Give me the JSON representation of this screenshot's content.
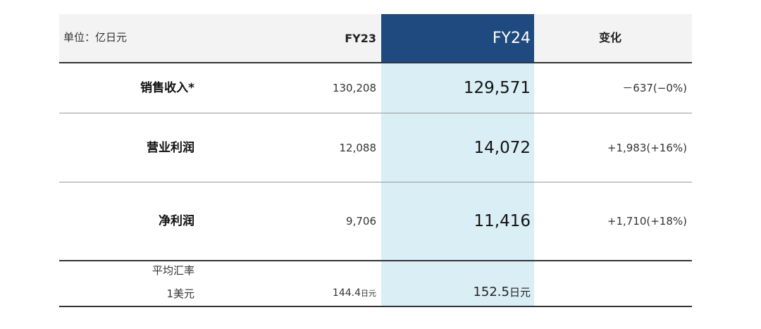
{
  "header": {
    "unit_label": "单位：亿日元",
    "fy23": "FY23",
    "fy24": "FY24",
    "change": "变化"
  },
  "rows": [
    {
      "label": "销售收入*",
      "fy23": "130,208",
      "fy24": "129,571",
      "change": "－637(−0%)"
    },
    {
      "label": "营业利润",
      "fy23": "12,088",
      "fy24": "14,072",
      "change": "+1,983(+16%)"
    },
    {
      "label": "净利润",
      "fy23": "9,706",
      "fy24": "11,416",
      "change": "+1,710(+18%)"
    }
  ],
  "fx": {
    "label_line1": "平均汇率",
    "label_line2": "1美元",
    "fy23_value": "144.4",
    "fy24_value": "152.5",
    "unit": "日元"
  },
  "colors": {
    "fy24_header": "#1e4a80",
    "fy24_column": "#daeef5",
    "header_background": "#f3f3f3",
    "rule_dark": "#333333",
    "rule_light": "#9a9a9a"
  }
}
